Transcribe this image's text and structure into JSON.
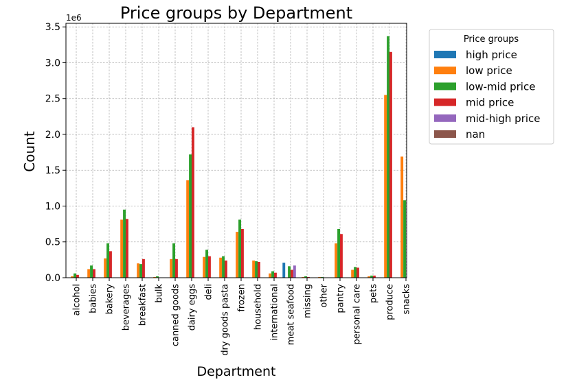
{
  "chart_data": {
    "type": "bar",
    "title": "Price groups by Department",
    "xlabel": "Department",
    "ylabel": "Count",
    "y_offset_label": "1e6",
    "y_multiplier": 1000000,
    "ylim": [
      0,
      3.55
    ],
    "yticks": [
      "0.0",
      "0.5",
      "1.0",
      "1.5",
      "2.0",
      "2.5",
      "3.0",
      "3.5"
    ],
    "grid": true,
    "legend_position": "upper-right-outside",
    "legend_title": "Price groups",
    "categories": [
      "alcohol",
      "babies",
      "bakery",
      "beverages",
      "breakfast",
      "bulk",
      "canned goods",
      "dairy eggs",
      "deli",
      "dry goods pasta",
      "frozen",
      "household",
      "international",
      "meat seafood",
      "missing",
      "other",
      "pantry",
      "personal care",
      "pets",
      "produce",
      "snacks"
    ],
    "series": [
      {
        "name": "high price",
        "color": "#1f77b4",
        "values": [
          0,
          0,
          0,
          0,
          0,
          0,
          0,
          0,
          0,
          0,
          0,
          0,
          0,
          0.21,
          0,
          0,
          0,
          0,
          0,
          0,
          0
        ]
      },
      {
        "name": "low price",
        "color": "#ff7f0e",
        "values": [
          0.02,
          0.12,
          0.27,
          0.81,
          0.2,
          0.01,
          0.26,
          1.36,
          0.29,
          0.28,
          0.64,
          0.24,
          0.06,
          0.0,
          0.01,
          0.01,
          0.48,
          0.11,
          0.02,
          2.55,
          1.69
        ]
      },
      {
        "name": "low-mid price",
        "color": "#2ca02c",
        "values": [
          0.06,
          0.17,
          0.48,
          0.95,
          0.19,
          0.02,
          0.48,
          1.72,
          0.39,
          0.3,
          0.81,
          0.23,
          0.09,
          0.16,
          0.02,
          0.01,
          0.68,
          0.15,
          0.03,
          3.37,
          1.08
        ]
      },
      {
        "name": "mid price",
        "color": "#d62728",
        "values": [
          0.04,
          0.12,
          0.37,
          0.82,
          0.26,
          0.0,
          0.26,
          2.1,
          0.3,
          0.24,
          0.68,
          0.22,
          0.07,
          0.11,
          0.01,
          0.0,
          0.61,
          0.14,
          0.03,
          3.15,
          0
        ]
      },
      {
        "name": "mid-high price",
        "color": "#9467bd",
        "values": [
          0,
          0,
          0,
          0,
          0,
          0,
          0,
          0,
          0,
          0,
          0,
          0,
          0,
          0.17,
          0,
          0,
          0,
          0,
          0,
          0,
          0
        ]
      },
      {
        "name": "nan",
        "color": "#8c564b",
        "values": [
          0,
          0,
          0,
          0,
          0,
          0,
          0,
          0,
          0,
          0,
          0,
          0,
          0,
          0,
          0,
          0,
          0,
          0,
          0,
          0,
          0
        ]
      }
    ]
  }
}
